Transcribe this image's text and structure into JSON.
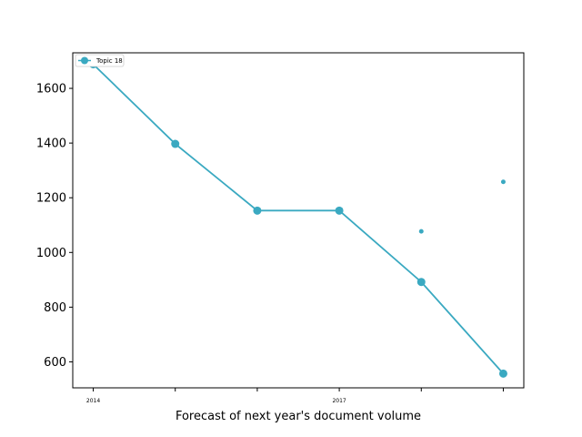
{
  "chart_data": {
    "type": "line",
    "title": "",
    "xlabel": "Forecast of next year's document volume",
    "ylabel": "",
    "x": [
      2014,
      2015,
      2016,
      2017,
      2018,
      2019
    ],
    "xticks": [
      2014,
      2015,
      2016,
      2017,
      2018,
      2019
    ],
    "xtick_labels": [
      "2014",
      "",
      "",
      "2017",
      "",
      ""
    ],
    "xlim": [
      2013.75,
      2019.25
    ],
    "ylim": [
      505,
      1730
    ],
    "yticks": [
      600,
      800,
      1000,
      1200,
      1400,
      1600
    ],
    "grid": false,
    "legend_position": "top-left",
    "series": [
      {
        "name": "Topic 18",
        "color": "#3aa9c1",
        "values": [
          1688,
          1397,
          1153,
          1153,
          892,
          557
        ]
      }
    ],
    "extra_points": {
      "color": "#3aa9c1",
      "points": [
        {
          "x": 2018,
          "y": 1077
        },
        {
          "x": 2019,
          "y": 1258
        }
      ]
    }
  }
}
